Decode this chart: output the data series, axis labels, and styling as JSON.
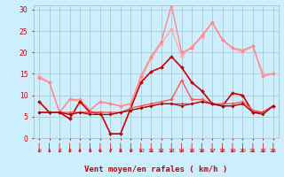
{
  "xlabel": "Vent moyen/en rafales ( km/h )",
  "bg_color": "#cceeff",
  "grid_color": "#aacccc",
  "xlim": [
    -0.5,
    23.5
  ],
  "ylim": [
    0,
    31
  ],
  "yticks": [
    0,
    5,
    10,
    15,
    20,
    25,
    30
  ],
  "xticks": [
    0,
    1,
    2,
    3,
    4,
    5,
    6,
    7,
    8,
    9,
    10,
    11,
    12,
    13,
    14,
    15,
    16,
    17,
    18,
    19,
    20,
    21,
    22,
    23
  ],
  "series": [
    {
      "y": [
        14.5,
        13.0,
        6.0,
        9.0,
        8.5,
        6.5,
        8.5,
        8.0,
        7.5,
        8.0,
        14.0,
        18.5,
        22.0,
        25.5,
        19.0,
        21.5,
        23.5,
        27.0,
        23.0,
        21.0,
        20.0,
        21.5,
        15.0,
        15.0
      ],
      "color": "#ffaaaa",
      "lw": 1.0,
      "marker": "D",
      "ms": 2.0
    },
    {
      "y": [
        14.0,
        13.0,
        6.0,
        9.0,
        9.0,
        6.5,
        8.5,
        8.0,
        7.5,
        8.0,
        14.5,
        19.0,
        22.5,
        31.0,
        20.0,
        21.0,
        24.0,
        27.0,
        23.0,
        21.0,
        20.5,
        21.5,
        14.5,
        15.0
      ],
      "color": "#ff8888",
      "lw": 1.0,
      "marker": "D",
      "ms": 2.0
    },
    {
      "y": [
        8.5,
        6.0,
        6.0,
        4.5,
        8.5,
        6.0,
        6.0,
        1.0,
        1.0,
        7.0,
        13.0,
        15.5,
        16.5,
        19.0,
        16.5,
        13.0,
        11.0,
        8.0,
        7.5,
        10.5,
        10.0,
        6.0,
        6.0,
        7.5
      ],
      "color": "#cc0000",
      "lw": 1.2,
      "marker": "D",
      "ms": 2.0
    },
    {
      "y": [
        6.0,
        6.0,
        6.0,
        6.0,
        6.0,
        6.0,
        6.0,
        6.0,
        6.0,
        7.0,
        7.5,
        8.0,
        8.5,
        9.0,
        13.5,
        9.0,
        9.0,
        8.0,
        8.0,
        8.0,
        8.5,
        6.5,
        6.0,
        7.5
      ],
      "color": "#ff5555",
      "lw": 1.0,
      "marker": "D",
      "ms": 1.8
    },
    {
      "y": [
        6.0,
        6.0,
        6.0,
        5.5,
        6.0,
        6.0,
        5.5,
        5.5,
        6.0,
        6.5,
        7.0,
        7.5,
        8.0,
        8.0,
        8.0,
        8.0,
        8.5,
        8.0,
        7.5,
        7.5,
        8.0,
        6.0,
        6.0,
        7.5
      ],
      "color": "#ee3333",
      "lw": 0.8,
      "marker": "D",
      "ms": 1.5
    },
    {
      "y": [
        6.0,
        6.0,
        6.0,
        5.5,
        6.0,
        5.5,
        5.5,
        5.5,
        6.0,
        6.5,
        7.0,
        7.5,
        8.0,
        8.0,
        7.5,
        8.0,
        8.5,
        8.0,
        7.5,
        7.5,
        8.0,
        6.0,
        5.5,
        7.5
      ],
      "color": "#990000",
      "lw": 0.8,
      "marker": "D",
      "ms": 1.5
    }
  ],
  "arrows": {
    "angles": [
      225,
      225,
      225,
      225,
      225,
      225,
      225,
      225,
      225,
      225,
      225,
      225,
      225,
      225,
      225,
      225,
      225,
      225,
      225,
      225,
      225,
      225,
      225,
      225
    ],
    "color": "#cc0000"
  }
}
